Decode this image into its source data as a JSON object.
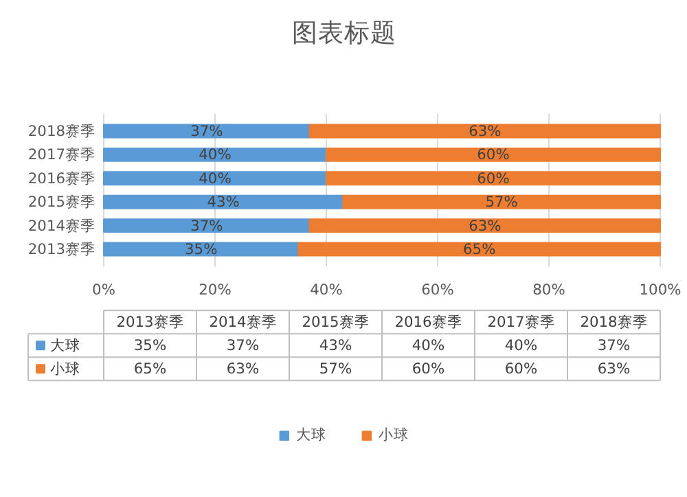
{
  "chart_data": {
    "type": "bar",
    "orientation": "horizontal",
    "stacked": true,
    "title": "图表标题",
    "categories": [
      "2018赛季",
      "2017赛季",
      "2016赛季",
      "2015赛季",
      "2014赛季",
      "2013赛季"
    ],
    "series": [
      {
        "name": "大球",
        "color": "#5b9bd5",
        "values": [
          37,
          40,
          40,
          43,
          37,
          35
        ],
        "value_labels": [
          "37%",
          "40%",
          "40%",
          "43%",
          "37%",
          "35%"
        ]
      },
      {
        "name": "小球",
        "color": "#ed7d31",
        "values": [
          63,
          60,
          60,
          57,
          63,
          65
        ],
        "value_labels": [
          "63%",
          "60%",
          "60%",
          "57%",
          "63%",
          "65%"
        ]
      }
    ],
    "xlim": [
      0,
      100
    ],
    "xticks": [
      {
        "value": 0,
        "label": "0%"
      },
      {
        "value": 20,
        "label": "20%"
      },
      {
        "value": 40,
        "label": "40%"
      },
      {
        "value": 60,
        "label": "60%"
      },
      {
        "value": 80,
        "label": "80%"
      },
      {
        "value": 100,
        "label": "100%"
      }
    ],
    "grid": "x",
    "legend": "bottom"
  }
}
